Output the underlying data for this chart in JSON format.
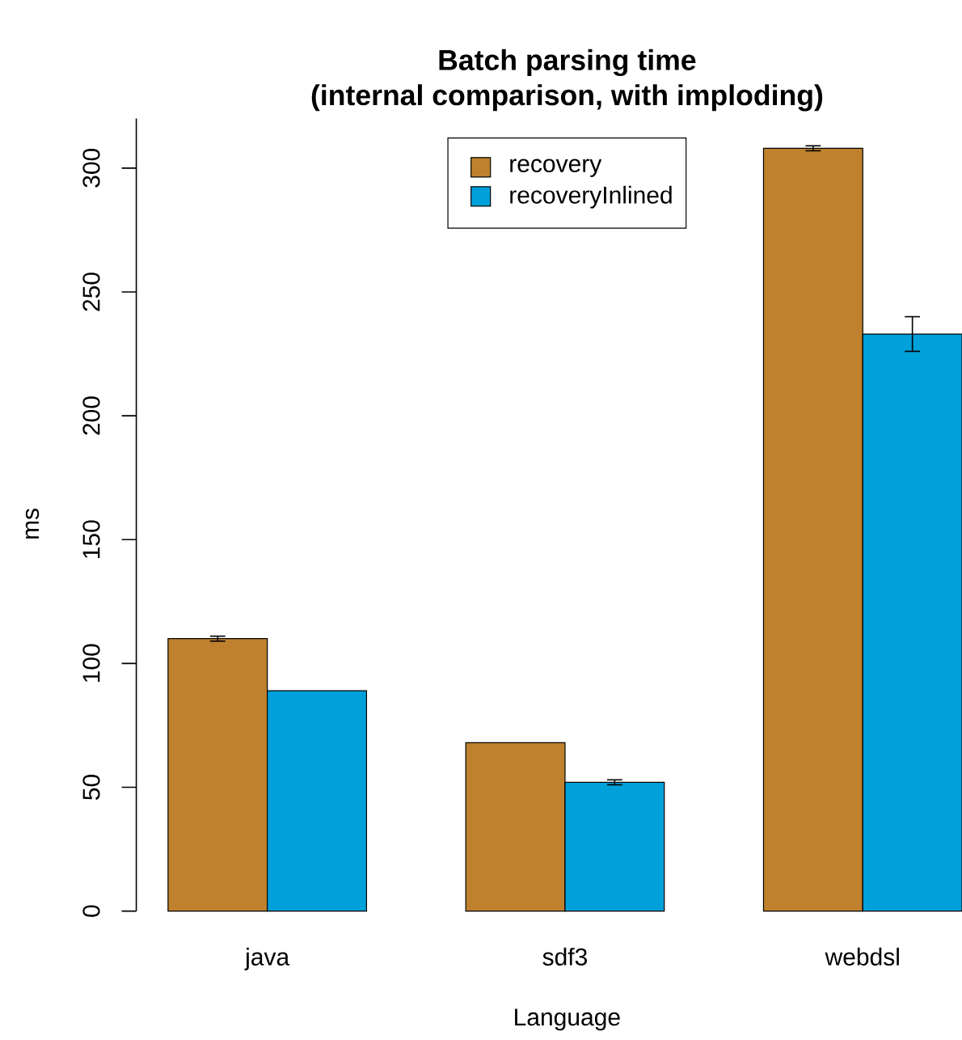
{
  "chart_data": {
    "type": "bar",
    "title": "Batch parsing time",
    "subtitle": "(internal comparison, with imploding)",
    "xlabel": "Language",
    "ylabel": "ms",
    "categories": [
      "java",
      "sdf3",
      "webdsl"
    ],
    "series": [
      {
        "name": "recovery",
        "color": "#bf812d",
        "values": [
          110,
          68,
          308
        ],
        "errors": [
          1,
          null,
          1
        ]
      },
      {
        "name": "recoveryInlined",
        "color": "#00a0da",
        "values": [
          89,
          52,
          233
        ],
        "errors": [
          null,
          1,
          7
        ]
      }
    ],
    "ylim": [
      0,
      320
    ],
    "yticks": [
      0,
      50,
      100,
      150,
      200,
      250,
      300
    ],
    "legend": "top"
  }
}
